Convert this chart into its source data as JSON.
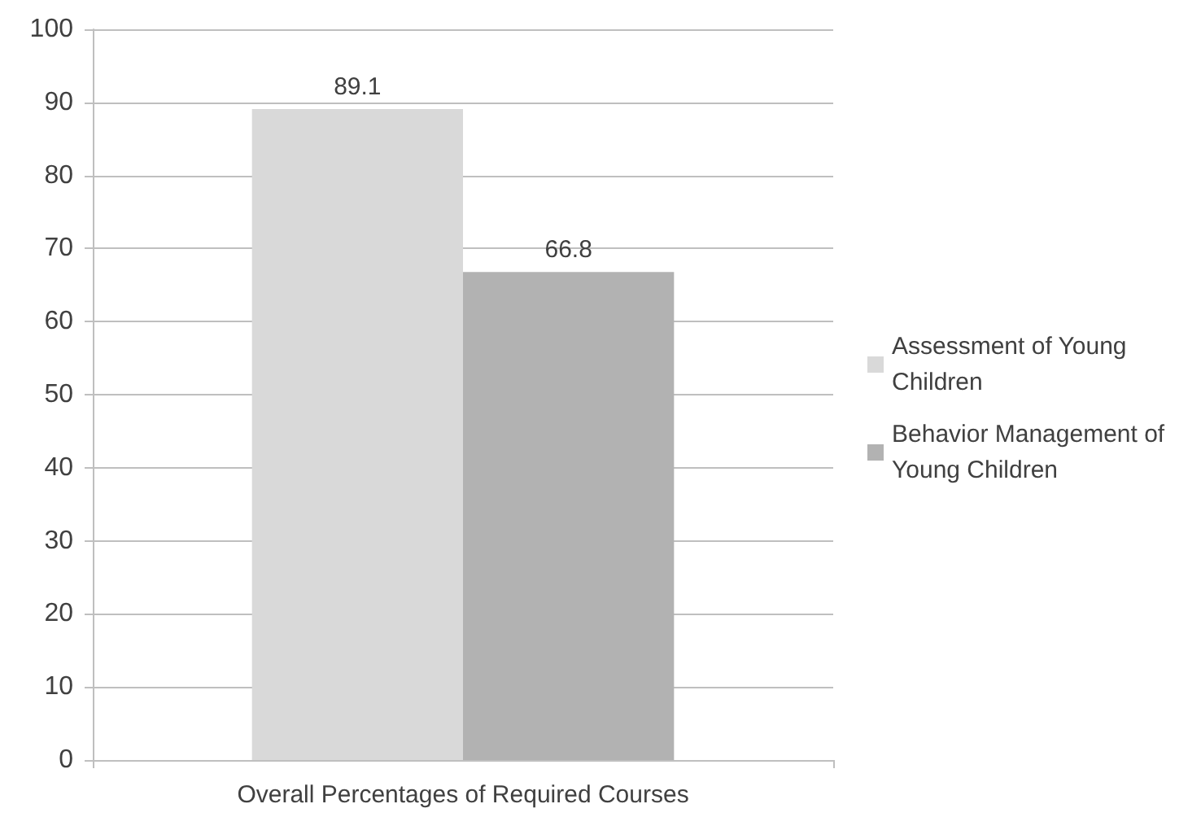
{
  "chart_data": {
    "type": "bar",
    "categories": [
      "Overall Percentages of Required Courses"
    ],
    "series": [
      {
        "name": "Assessment of Young Children",
        "color": "#d9d9d9",
        "values": [
          89.1
        ]
      },
      {
        "name": "Behavior Management of Young Children",
        "color": "#b2b2b2",
        "values": [
          66.8
        ]
      }
    ],
    "ylim": [
      0,
      100
    ],
    "yticks": [
      0,
      10,
      20,
      30,
      40,
      50,
      60,
      70,
      80,
      90,
      100
    ],
    "grid": "y",
    "legend": "right",
    "data_labels": true
  }
}
